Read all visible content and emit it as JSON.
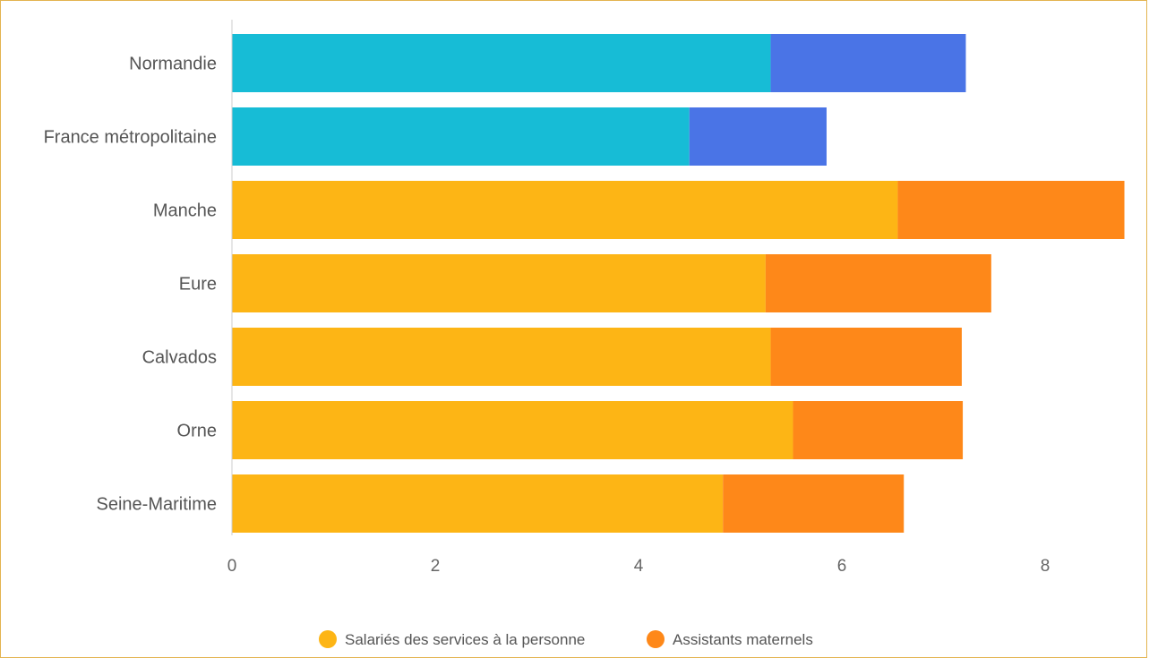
{
  "chart_data": {
    "type": "bar",
    "orientation": "horizontal",
    "stacked": true,
    "categories": [
      "Normandie",
      "France métropolitaine",
      "Manche",
      "Eure",
      "Calvados",
      "Orne",
      "Seine-Maritime"
    ],
    "series": [
      {
        "name": "Salariés des services à la personne",
        "values": [
          5.3,
          4.5,
          6.55,
          5.25,
          5.3,
          5.52,
          4.83
        ],
        "colors": [
          "#17bcd6",
          "#17bcd6",
          "#fdb515",
          "#fdb515",
          "#fdb515",
          "#fdb515",
          "#fdb515"
        ]
      },
      {
        "name": "Assistants maternels",
        "values": [
          1.92,
          1.35,
          2.23,
          2.22,
          1.88,
          1.67,
          1.78
        ],
        "colors": [
          "#4a74e6",
          "#4a74e6",
          "#fe8819",
          "#fe8819",
          "#fe8819",
          "#fe8819",
          "#fe8819"
        ]
      }
    ],
    "xticks": [
      "0",
      "2",
      "4",
      "6",
      "8"
    ],
    "xlim": [
      0,
      8.8
    ],
    "grid": false,
    "legend_position": "bottom"
  },
  "legend": {
    "items": [
      {
        "label": "Salariés des services à la personne",
        "color": "#fdb515"
      },
      {
        "label": "Assistants maternels",
        "color": "#fe8819"
      }
    ]
  }
}
